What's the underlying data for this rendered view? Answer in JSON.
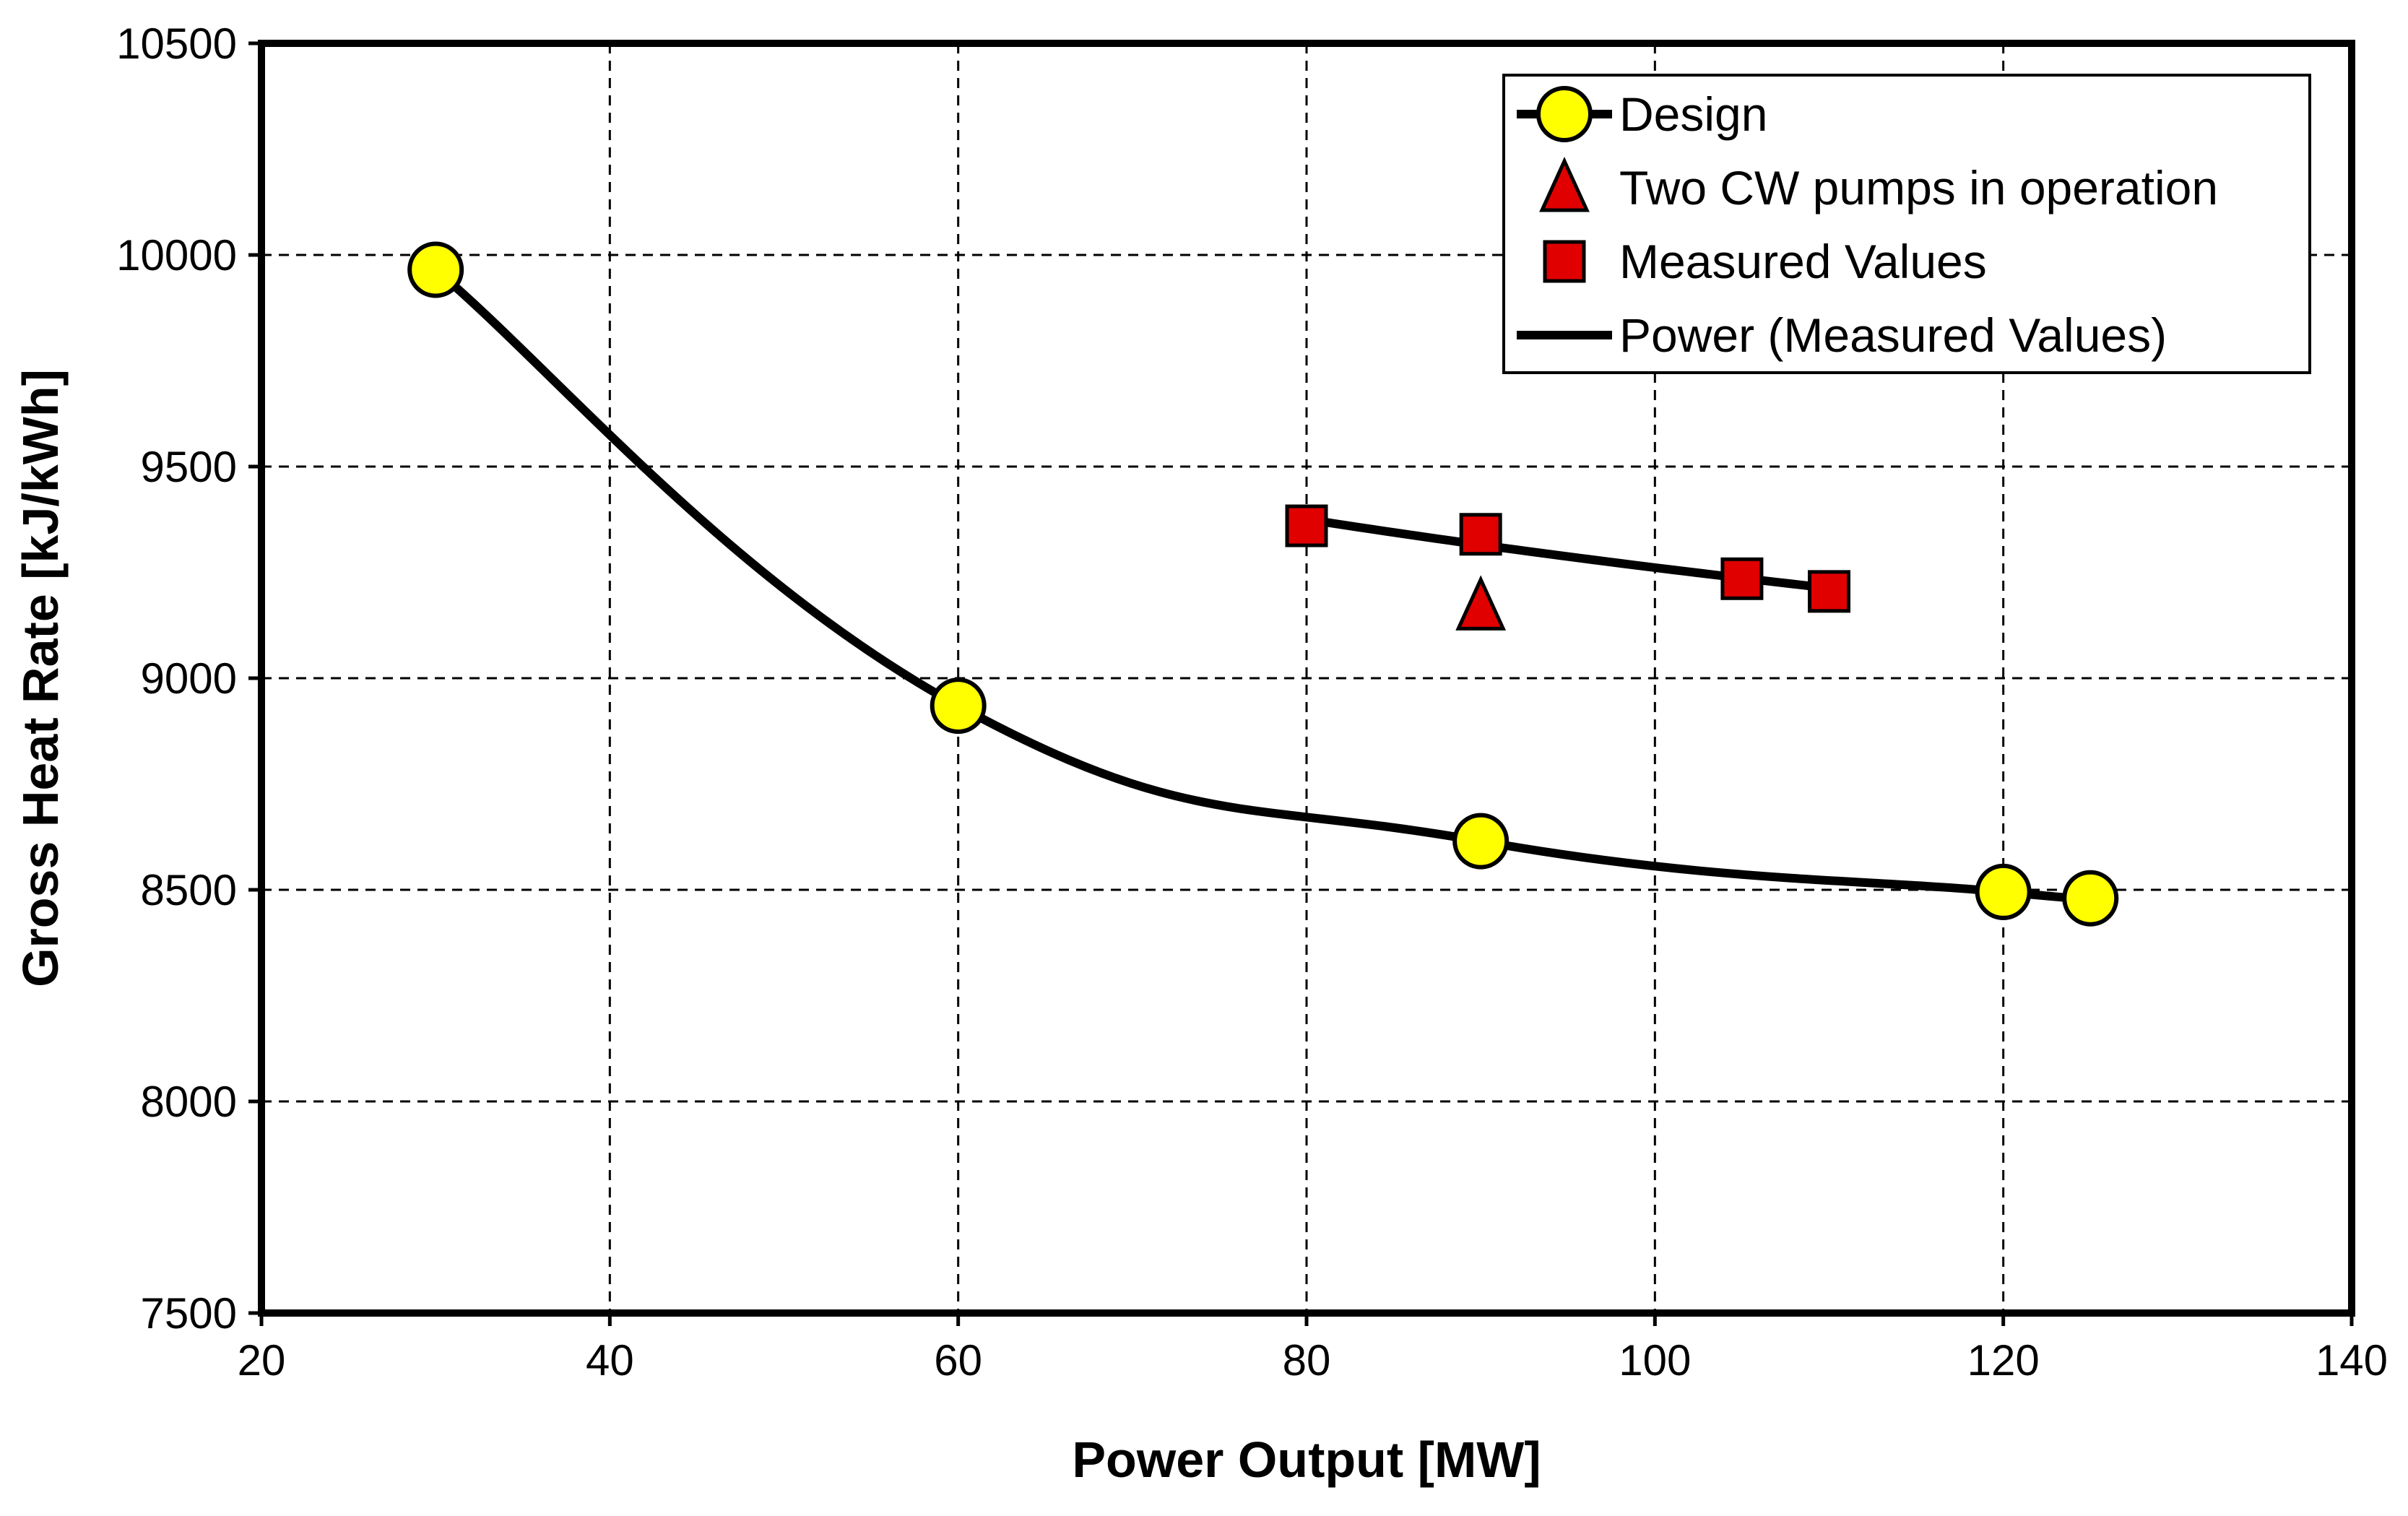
{
  "chart_data": {
    "type": "scatter",
    "title": "",
    "xlabel": "Power Output [MW]",
    "ylabel": "Gross Heat Rate [kJ/kWh]",
    "xlim": [
      20,
      140
    ],
    "ylim": [
      7500,
      10500
    ],
    "xticks": [
      20,
      40,
      60,
      80,
      100,
      120,
      140
    ],
    "yticks": [
      7500,
      8000,
      8500,
      9000,
      9500,
      10000,
      10500
    ],
    "grid": true,
    "legend_position": "top-right",
    "series": [
      {
        "name": "Design",
        "kind": "line-markers",
        "marker": "circle",
        "color": "#FFFF00",
        "x": [
          30,
          60,
          90,
          120,
          125
        ],
        "y": [
          9965,
          8935,
          8615,
          8495,
          8480
        ]
      },
      {
        "name": "Two CW pumps in operation",
        "kind": "markers",
        "marker": "triangle",
        "color": "#E00000",
        "x": [
          90
        ],
        "y": [
          9170
        ]
      },
      {
        "name": "Measured Values",
        "kind": "markers",
        "marker": "square",
        "color": "#E00000",
        "x": [
          80,
          90,
          105,
          110
        ],
        "y": [
          9360,
          9340,
          9235,
          9205
        ]
      },
      {
        "name": "Power (Measured Values)",
        "kind": "trendline",
        "trend": "power",
        "color": "#000000",
        "x_range": [
          80,
          110
        ]
      }
    ]
  }
}
